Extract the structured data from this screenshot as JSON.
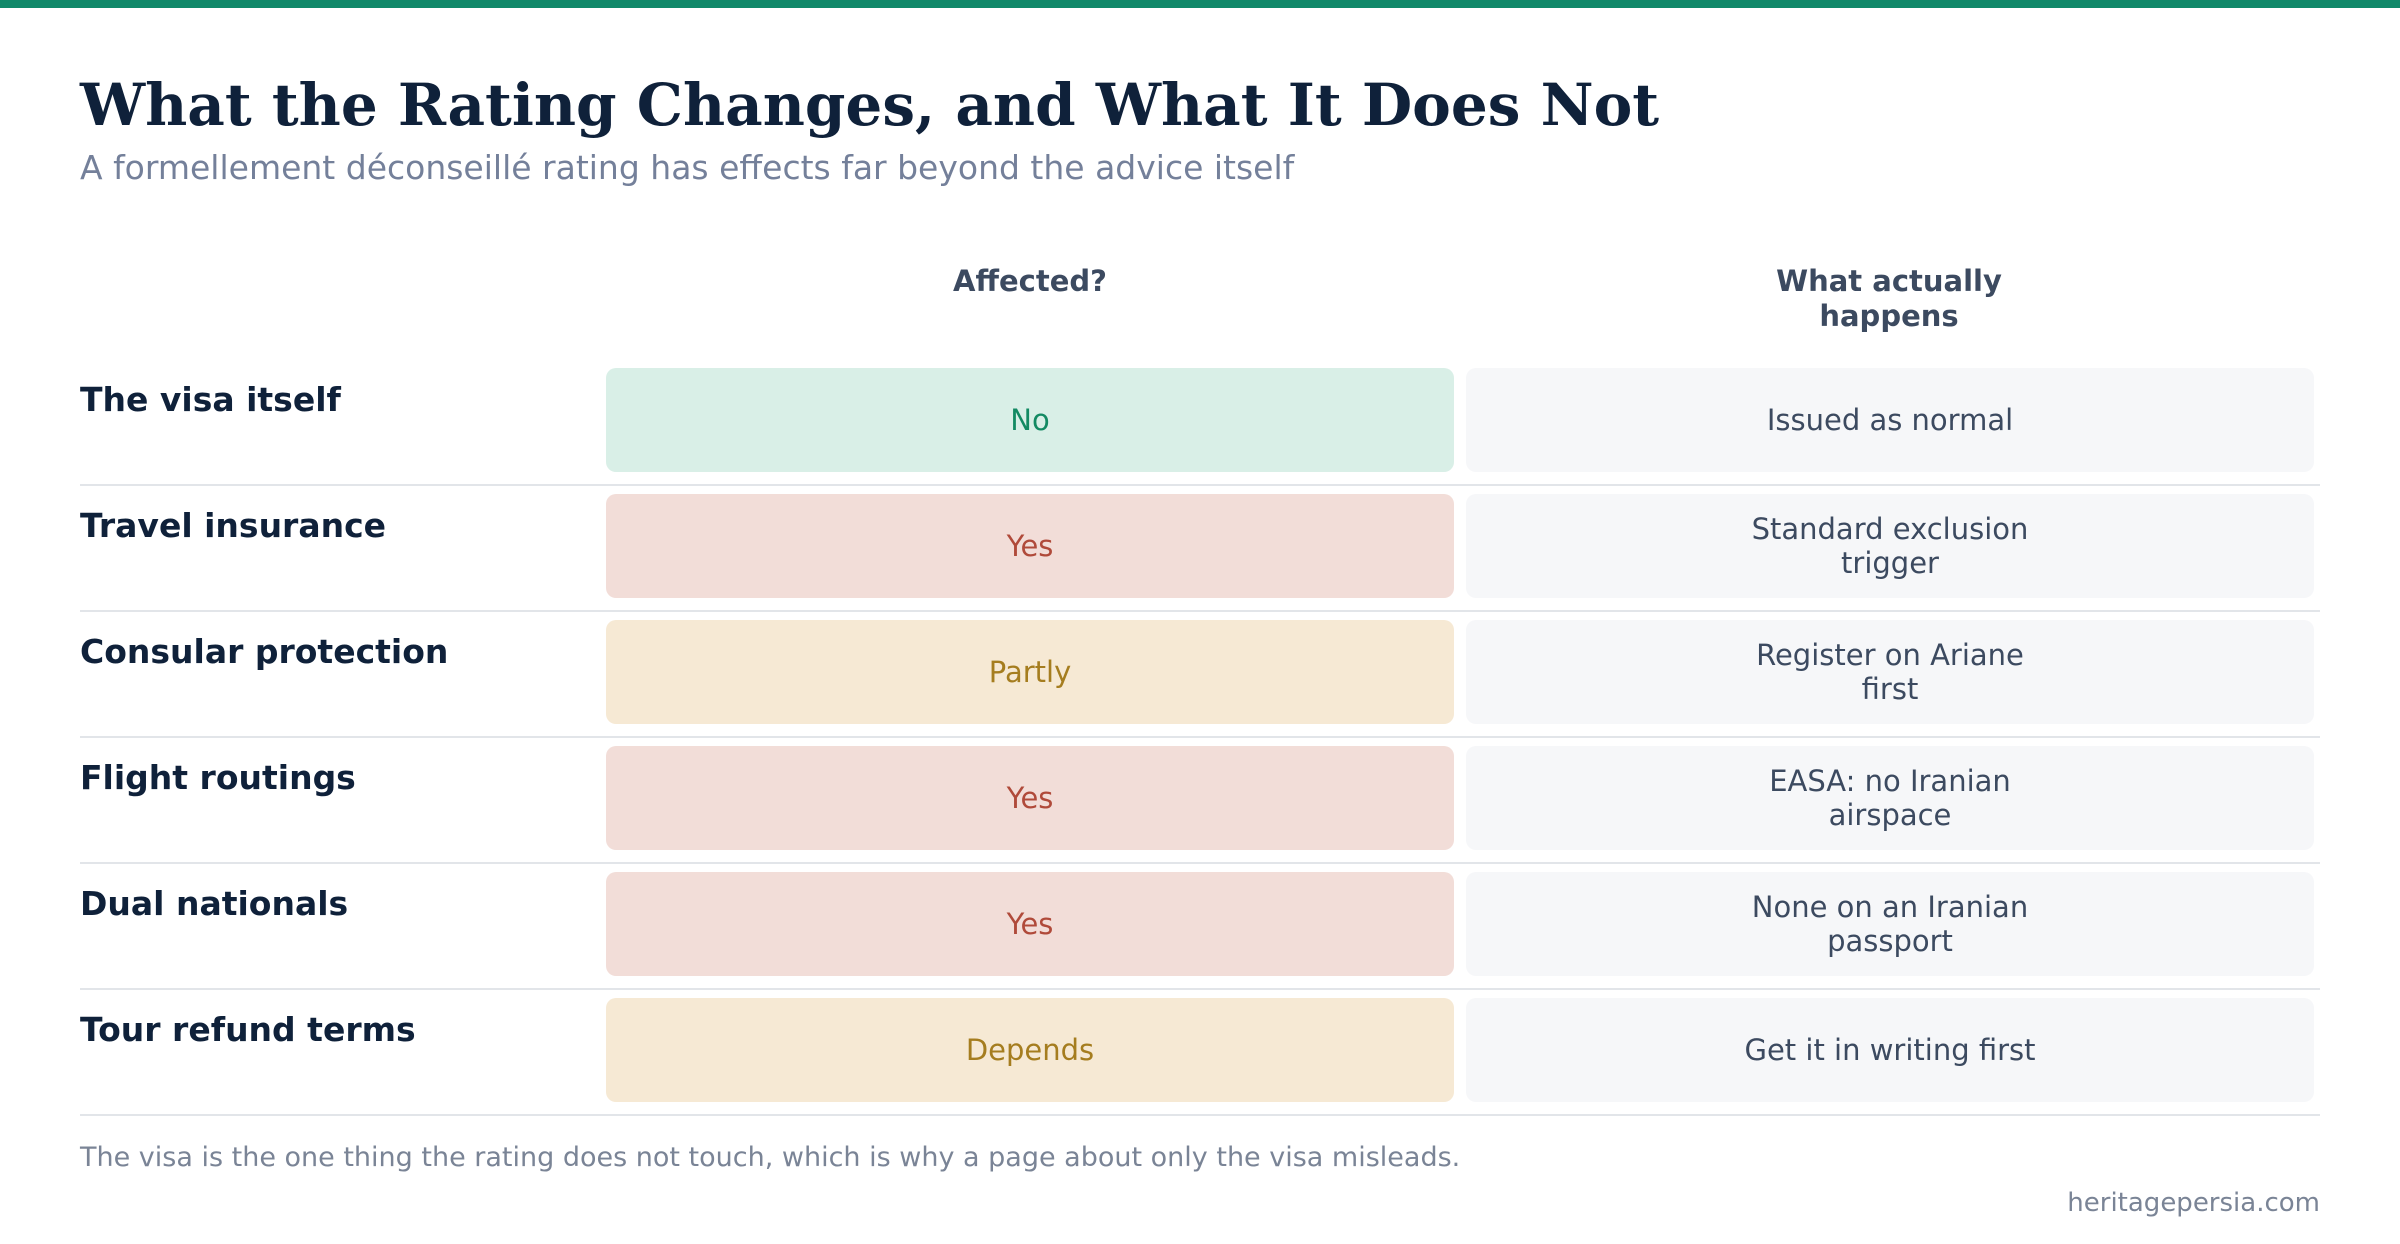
{
  "colors": {
    "accent_bar": "#11896a",
    "no_bg": "#d9efe7",
    "no_text": "#138a63",
    "yes_bg": "#f2ddd8",
    "yes_text": "#b04a3a",
    "partial_bg": "#f6e9d4",
    "partial_text": "#a57d1f"
  },
  "title": "What the Rating Changes, and What It Does Not",
  "subtitle": "A formellement déconseillé rating has effects far beyond the advice itself",
  "columns": {
    "affected": "Affected?",
    "happens": "What actually happens"
  },
  "rows": [
    {
      "label": "The visa itself",
      "affected": "No",
      "status": "no",
      "happens": "Issued as normal"
    },
    {
      "label": "Travel insurance",
      "affected": "Yes",
      "status": "yes",
      "happens": "Standard exclusion trigger"
    },
    {
      "label": "Consular protection",
      "affected": "Partly",
      "status": "partly",
      "happens": "Register on Ariane first"
    },
    {
      "label": "Flight routings",
      "affected": "Yes",
      "status": "yes",
      "happens": "EASA: no Iranian airspace"
    },
    {
      "label": "Dual nationals",
      "affected": "Yes",
      "status": "yes",
      "happens": "None on an Iranian passport"
    },
    {
      "label": "Tour refund terms",
      "affected": "Depends",
      "status": "partly",
      "happens": "Get it in writing first"
    }
  ],
  "footnote": "The visa is the one thing the rating does not touch, which is why a page about only the visa misleads.",
  "source": "heritagepersia.com"
}
